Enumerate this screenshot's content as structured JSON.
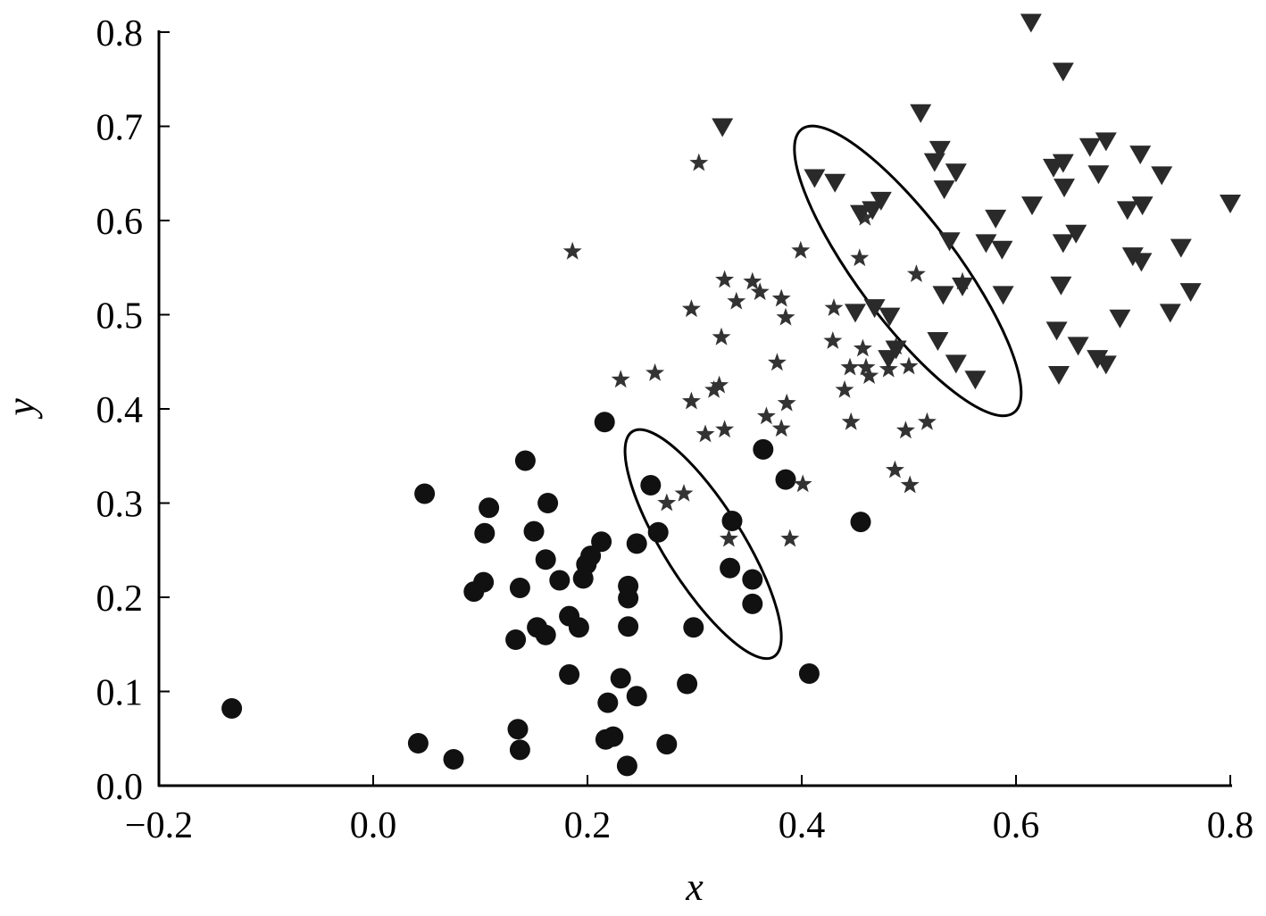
{
  "chart_data": {
    "type": "scatter",
    "title": "",
    "xlabel": "x",
    "ylabel": "y",
    "xlim": [
      -0.2,
      0.8
    ],
    "ylim": [
      0.0,
      0.8
    ],
    "xticks": [
      "−0.2",
      "0.0",
      "0.2",
      "0.4",
      "0.6",
      "0.8"
    ],
    "yticks": [
      "0.0",
      "0.1",
      "0.2",
      "0.3",
      "0.4",
      "0.5",
      "0.6",
      "0.7",
      "0.8"
    ],
    "xtick_values": [
      -0.2,
      0.0,
      0.2,
      0.4,
      0.6,
      0.8
    ],
    "ytick_values": [
      0.0,
      0.1,
      0.2,
      0.3,
      0.4,
      0.5,
      0.6,
      0.7,
      0.8
    ],
    "grid": false,
    "color": "#1a1a1a",
    "series": [
      {
        "marker": "circle",
        "points": [
          [
            -0.132,
            0.082
          ],
          [
            0.048,
            0.31
          ],
          [
            0.042,
            0.045
          ],
          [
            0.075,
            0.028
          ],
          [
            0.094,
            0.206
          ],
          [
            0.108,
            0.295
          ],
          [
            0.104,
            0.268
          ],
          [
            0.103,
            0.216
          ],
          [
            0.142,
            0.345
          ],
          [
            0.15,
            0.27
          ],
          [
            0.163,
            0.3
          ],
          [
            0.161,
            0.24
          ],
          [
            0.137,
            0.21
          ],
          [
            0.133,
            0.155
          ],
          [
            0.153,
            0.168
          ],
          [
            0.161,
            0.16
          ],
          [
            0.135,
            0.06
          ],
          [
            0.137,
            0.038
          ],
          [
            0.174,
            0.218
          ],
          [
            0.183,
            0.18
          ],
          [
            0.192,
            0.168
          ],
          [
            0.183,
            0.118
          ],
          [
            0.196,
            0.22
          ],
          [
            0.199,
            0.235
          ],
          [
            0.203,
            0.244
          ],
          [
            0.213,
            0.259
          ],
          [
            0.216,
            0.386
          ],
          [
            0.219,
            0.088
          ],
          [
            0.217,
            0.049
          ],
          [
            0.224,
            0.052
          ],
          [
            0.231,
            0.114
          ],
          [
            0.237,
            0.021
          ],
          [
            0.238,
            0.212
          ],
          [
            0.238,
            0.199
          ],
          [
            0.238,
            0.169
          ],
          [
            0.246,
            0.095
          ],
          [
            0.246,
            0.257
          ],
          [
            0.259,
            0.319
          ],
          [
            0.266,
            0.269
          ],
          [
            0.274,
            0.044
          ],
          [
            0.293,
            0.108
          ],
          [
            0.299,
            0.168
          ],
          [
            0.335,
            0.281
          ],
          [
            0.333,
            0.231
          ],
          [
            0.354,
            0.219
          ],
          [
            0.354,
            0.193
          ],
          [
            0.364,
            0.357
          ],
          [
            0.385,
            0.325
          ],
          [
            0.407,
            0.119
          ],
          [
            0.455,
            0.28
          ]
        ]
      },
      {
        "marker": "star",
        "points": [
          [
            0.186,
            0.567
          ],
          [
            0.231,
            0.431
          ],
          [
            0.263,
            0.438
          ],
          [
            0.274,
            0.3
          ],
          [
            0.29,
            0.31
          ],
          [
            0.297,
            0.408
          ],
          [
            0.297,
            0.506
          ],
          [
            0.304,
            0.661
          ],
          [
            0.31,
            0.373
          ],
          [
            0.318,
            0.42
          ],
          [
            0.323,
            0.425
          ],
          [
            0.325,
            0.476
          ],
          [
            0.328,
            0.378
          ],
          [
            0.328,
            0.537
          ],
          [
            0.332,
            0.262
          ],
          [
            0.339,
            0.514
          ],
          [
            0.354,
            0.535
          ],
          [
            0.361,
            0.524
          ],
          [
            0.367,
            0.392
          ],
          [
            0.377,
            0.449
          ],
          [
            0.381,
            0.379
          ],
          [
            0.381,
            0.517
          ],
          [
            0.385,
            0.497
          ],
          [
            0.386,
            0.406
          ],
          [
            0.389,
            0.262
          ],
          [
            0.399,
            0.568
          ],
          [
            0.401,
            0.32
          ],
          [
            0.429,
            0.472
          ],
          [
            0.43,
            0.507
          ],
          [
            0.44,
            0.42
          ],
          [
            0.445,
            0.444
          ],
          [
            0.446,
            0.386
          ],
          [
            0.454,
            0.56
          ],
          [
            0.457,
            0.464
          ],
          [
            0.459,
            0.603
          ],
          [
            0.46,
            0.444
          ],
          [
            0.463,
            0.435
          ],
          [
            0.481,
            0.442
          ],
          [
            0.487,
            0.335
          ],
          [
            0.488,
            0.466
          ],
          [
            0.497,
            0.377
          ],
          [
            0.5,
            0.445
          ],
          [
            0.501,
            0.319
          ],
          [
            0.507,
            0.543
          ],
          [
            0.517,
            0.386
          ],
          [
            0.55,
            0.535
          ]
        ]
      },
      {
        "marker": "triangle-down",
        "points": [
          [
            0.326,
            0.699
          ],
          [
            0.412,
            0.645
          ],
          [
            0.431,
            0.64
          ],
          [
            0.45,
            0.502
          ],
          [
            0.455,
            0.607
          ],
          [
            0.466,
            0.611
          ],
          [
            0.474,
            0.621
          ],
          [
            0.468,
            0.507
          ],
          [
            0.482,
            0.498
          ],
          [
            0.488,
            0.463
          ],
          [
            0.481,
            0.453
          ],
          [
            0.511,
            0.714
          ],
          [
            0.524,
            0.662
          ],
          [
            0.529,
            0.675
          ],
          [
            0.533,
            0.633
          ],
          [
            0.544,
            0.651
          ],
          [
            0.538,
            0.578
          ],
          [
            0.532,
            0.521
          ],
          [
            0.527,
            0.472
          ],
          [
            0.544,
            0.448
          ],
          [
            0.562,
            0.431
          ],
          [
            0.55,
            0.53
          ],
          [
            0.581,
            0.602
          ],
          [
            0.572,
            0.576
          ],
          [
            0.587,
            0.569
          ],
          [
            0.588,
            0.521
          ],
          [
            0.615,
            0.616
          ],
          [
            0.614,
            0.81
          ],
          [
            0.644,
            0.758
          ],
          [
            0.635,
            0.656
          ],
          [
            0.644,
            0.661
          ],
          [
            0.645,
            0.635
          ],
          [
            0.644,
            0.576
          ],
          [
            0.642,
            0.531
          ],
          [
            0.638,
            0.483
          ],
          [
            0.64,
            0.436
          ],
          [
            0.656,
            0.586
          ],
          [
            0.658,
            0.467
          ],
          [
            0.669,
            0.678
          ],
          [
            0.677,
            0.649
          ],
          [
            0.684,
            0.684
          ],
          [
            0.676,
            0.453
          ],
          [
            0.684,
            0.447
          ],
          [
            0.704,
            0.611
          ],
          [
            0.716,
            0.67
          ],
          [
            0.718,
            0.616
          ],
          [
            0.709,
            0.562
          ],
          [
            0.717,
            0.556
          ],
          [
            0.697,
            0.496
          ],
          [
            0.736,
            0.648
          ],
          [
            0.754,
            0.571
          ],
          [
            0.744,
            0.502
          ],
          [
            0.763,
            0.524
          ],
          [
            0.8,
            0.618
          ]
        ]
      }
    ],
    "annotations": [
      {
        "shape": "ellipse",
        "major_axis": [
          [
            0.242,
            0.376
          ],
          [
            0.374,
            0.137
          ]
        ]
      },
      {
        "shape": "ellipse",
        "major_axis": [
          [
            0.4,
            0.697
          ],
          [
            0.598,
            0.396
          ]
        ]
      }
    ]
  }
}
